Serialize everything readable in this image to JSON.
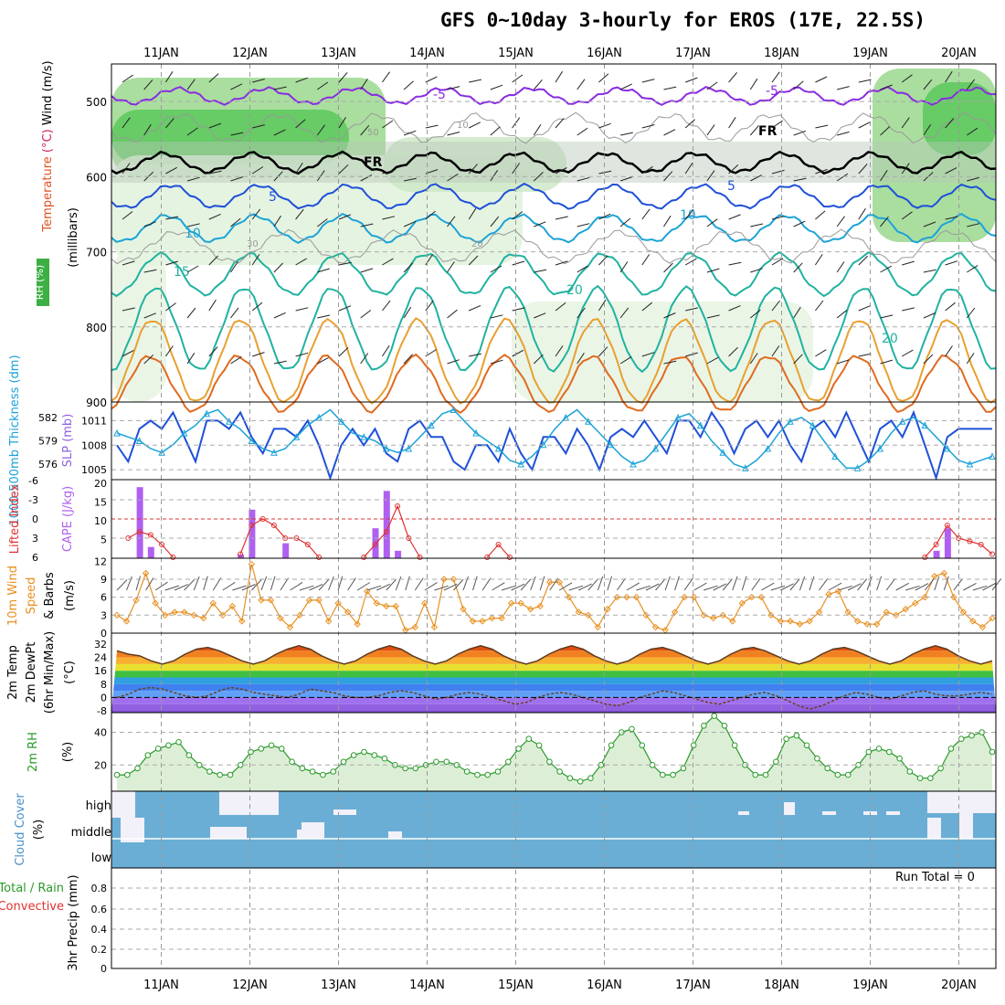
{
  "title": "GFS 0~10day 3-hourly for EROS (17E, 22.5S)",
  "days": [
    "11JAN",
    "12JAN",
    "13JAN",
    "14JAN",
    "15JAN",
    "16JAN",
    "17JAN",
    "18JAN",
    "19JAN",
    "20JAN"
  ],
  "colors": {
    "rh": "#3cb043",
    "purple": "#8a2be2",
    "blue": "#1e50d8",
    "cyan": "#1ca3d8",
    "teal": "#20b2a0",
    "orange": "#e8a030",
    "dkorange": "#e06a20",
    "magenta": "#d0107a",
    "wind": "#e89020",
    "cloud": "#6aaed6",
    "green": "#2a9a2a"
  },
  "chart_data": [
    {
      "type": "heatmap",
      "panel": "upper-air",
      "ylabel": "(millibars)",
      "ylabel_parts": [
        "Temperature",
        "(°C)",
        "Wind",
        "(m/s)"
      ],
      "rh_label": "RH (%)",
      "yticks": [
        500,
        600,
        700,
        800,
        900
      ],
      "ylim": [
        450,
        900
      ],
      "contour_labels": [
        "-5",
        "FR",
        "5",
        "10",
        "15",
        "20",
        "30",
        "10",
        "50",
        "20",
        "-5",
        "FR",
        "5",
        "10",
        "20"
      ]
    },
    {
      "type": "line",
      "panel": "thickness-slp",
      "ylabel_left": "1000-500mb Thickness (dm)",
      "ylabel_right": "SLP (mb)",
      "yticks_left": [
        576,
        579,
        582
      ],
      "yticks_right": [
        1005,
        1008,
        1011
      ],
      "slp": [
        1008,
        1006,
        1010,
        1011,
        1010,
        1012,
        1009,
        1006,
        1011,
        1011,
        1010,
        1012,
        1009,
        1007,
        1010,
        1010,
        1009,
        1011,
        1008,
        1004,
        1008,
        1010,
        1008,
        1010,
        1007,
        1006,
        1010,
        1011,
        1009,
        1009,
        1006,
        1005,
        1008,
        1008,
        1006,
        1010,
        1007,
        1005,
        1009,
        1009,
        1007,
        1010,
        1008,
        1005,
        1009,
        1010,
        1009,
        1011,
        1009,
        1007,
        1011,
        1011,
        1009,
        1012,
        1010,
        1007,
        1010,
        1011,
        1009,
        1011,
        1008,
        1006,
        1010,
        1011,
        1009,
        1012,
        1009,
        1006,
        1010,
        1011,
        1009,
        1012,
        1008,
        1004,
        1009,
        1010,
        1010,
        1010,
        1010
      ],
      "thickness": [
        580,
        579.5,
        579,
        578,
        577.5,
        578.5,
        580,
        581,
        582.5,
        583,
        581.5,
        580.5,
        579,
        578,
        577.5,
        578,
        579.5,
        581,
        582,
        583,
        581.5,
        580,
        579.5,
        579,
        578,
        577.5,
        578,
        579.5,
        581,
        582.5,
        583,
        581.5,
        580,
        579,
        578,
        576.5,
        576,
        577,
        578.5,
        580.5,
        582,
        583,
        581.5,
        580,
        578.5,
        577,
        576,
        576.5,
        578,
        580,
        582,
        582.5,
        581,
        579,
        577.5,
        576,
        575.5,
        576.5,
        578,
        580,
        581.5,
        582,
        581,
        579,
        577,
        575.5,
        575.5,
        576.5,
        578,
        580,
        581.5,
        582,
        581,
        579.5,
        578,
        576.5,
        576,
        576.5,
        577
      ]
    },
    {
      "type": "bar",
      "panel": "cape-li",
      "ylabel_left": "Lifted Index",
      "ylabel_right": "CAPE (J/kg)",
      "yticks_left": [
        "-6",
        "-3",
        "0",
        "3",
        "6"
      ],
      "yticks_right": [
        5,
        10,
        15,
        20
      ],
      "cape": [
        0,
        0,
        19,
        3,
        0,
        0,
        0,
        0,
        0,
        0,
        0,
        1,
        13,
        0,
        0,
        4,
        0,
        0,
        0,
        0,
        0,
        0,
        0,
        8,
        18,
        2,
        0,
        0,
        0,
        0,
        0,
        0,
        0,
        0,
        0,
        0,
        0,
        0,
        0,
        0,
        0,
        0,
        0,
        0,
        0,
        0,
        0,
        0,
        0,
        0,
        0,
        0,
        0,
        0,
        0,
        0,
        0,
        0,
        0,
        0,
        0,
        0,
        0,
        0,
        0,
        0,
        0,
        0,
        0,
        0,
        0,
        0,
        0,
        2,
        8,
        0,
        0,
        0,
        0
      ],
      "lifted_index": [
        null,
        3,
        2,
        2.5,
        4,
        6,
        null,
        null,
        null,
        null,
        null,
        5.5,
        1,
        0,
        1,
        3,
        3,
        4,
        6,
        null,
        null,
        null,
        6,
        4,
        2,
        -2,
        3,
        6,
        null,
        null,
        null,
        null,
        null,
        6,
        4,
        6,
        null,
        null,
        null,
        null,
        null,
        null,
        null,
        null,
        null,
        null,
        null,
        null,
        null,
        null,
        null,
        null,
        null,
        null,
        null,
        null,
        null,
        null,
        null,
        null,
        null,
        null,
        null,
        null,
        null,
        null,
        null,
        null,
        null,
        null,
        null,
        null,
        6,
        4,
        1,
        3,
        3.5,
        4,
        5.5
      ]
    },
    {
      "type": "line",
      "panel": "wind10m",
      "ylabel": "10m Wind Speed & Barbs (m/s)",
      "ylabel_parts": [
        "10m Wind",
        "Speed",
        "& Barbs",
        "(m/s)"
      ],
      "yticks": [
        0,
        3,
        6,
        9,
        12
      ],
      "values": [
        3,
        2,
        5.5,
        10,
        5,
        3,
        3.5,
        3.5,
        3,
        2.5,
        5,
        3,
        4.5,
        2,
        11.5,
        5.5,
        5.5,
        2.5,
        1,
        3,
        5.5,
        5.5,
        2,
        5,
        3.5,
        1.5,
        7,
        5,
        4.5,
        4.5,
        0.5,
        1,
        5,
        1,
        9,
        9,
        4,
        2,
        2,
        2.5,
        2.5,
        5,
        5,
        4,
        4.5,
        8.5,
        8.5,
        6,
        3.5,
        3,
        1,
        4,
        6,
        6,
        6,
        3,
        1,
        0.5,
        3.5,
        6,
        6,
        3,
        2.5,
        3,
        2,
        5,
        6,
        6,
        3,
        2,
        2,
        1.5,
        2,
        3.5,
        6.5,
        7,
        3.5,
        2,
        1.5,
        1.5,
        3.5,
        3,
        4,
        5,
        6,
        9.5,
        10,
        6,
        3.5,
        2,
        1,
        2.5
      ]
    },
    {
      "type": "area",
      "panel": "temp2m",
      "ylabel": "2m Temp / 2m DewPt (6hr Min/Max) (°C)",
      "ylabel_parts": [
        "2m Temp",
        "2m DewPt",
        "(6hr Min/Max)",
        "(°C)"
      ],
      "yticks": [
        "32",
        "24",
        "16",
        "8",
        "0",
        "-8"
      ],
      "temp": [
        28,
        26,
        25,
        22,
        20,
        22,
        26,
        29,
        30,
        28,
        25,
        22,
        20,
        22,
        26,
        29,
        31,
        29,
        25,
        22,
        20,
        22,
        26,
        29,
        31,
        29,
        25,
        22,
        20,
        22,
        26,
        29,
        31,
        29,
        25,
        22,
        20,
        22,
        26,
        29,
        31,
        29,
        25,
        22,
        20,
        22,
        26,
        29,
        30,
        28,
        25,
        22,
        20,
        22,
        26,
        29,
        30,
        28,
        25,
        22,
        20,
        22,
        26,
        29,
        30,
        28,
        25,
        22,
        20,
        22,
        26,
        29,
        31,
        29,
        25,
        22,
        20,
        22
      ],
      "dewpt": [
        0,
        2,
        5,
        6,
        5,
        3,
        1,
        0,
        1,
        4,
        6,
        5,
        3,
        2,
        1,
        0,
        2,
        5,
        4,
        3,
        1,
        0,
        0,
        1,
        3,
        4,
        3,
        1,
        -1,
        0,
        2,
        3,
        2,
        0,
        -2,
        -4,
        -3,
        0,
        2,
        3,
        2,
        0,
        -2,
        -4,
        -5,
        -3,
        0,
        2,
        4,
        3,
        1,
        -1,
        -3,
        -4,
        -2,
        0,
        2,
        3,
        1,
        -2,
        -5,
        -7,
        -5,
        -2,
        1,
        3,
        2,
        0,
        -1,
        1,
        3,
        4,
        2,
        1,
        1,
        2,
        3,
        2
      ]
    },
    {
      "type": "area",
      "panel": "rh2m",
      "ylabel": "2m RH (%)",
      "ylabel_parts": [
        "2m RH",
        "(%)"
      ],
      "yticks": [
        20,
        40
      ],
      "values": [
        14,
        14,
        18,
        26,
        30,
        32,
        34,
        26,
        20,
        16,
        14,
        14,
        20,
        28,
        30,
        32,
        30,
        22,
        18,
        16,
        14,
        16,
        22,
        26,
        28,
        26,
        24,
        20,
        18,
        18,
        20,
        22,
        22,
        20,
        16,
        14,
        14,
        16,
        22,
        30,
        36,
        32,
        22,
        16,
        12,
        10,
        12,
        20,
        32,
        40,
        42,
        32,
        20,
        14,
        14,
        18,
        32,
        44,
        50,
        44,
        32,
        20,
        14,
        14,
        22,
        36,
        38,
        32,
        24,
        18,
        14,
        14,
        20,
        28,
        30,
        28,
        24,
        16,
        12,
        12,
        18,
        30,
        36,
        38,
        40,
        28
      ]
    },
    {
      "type": "heatmap",
      "panel": "cloud",
      "ylabel": "Cloud Cover (%)",
      "ylabel_parts": [
        "Cloud Cover",
        "(%)"
      ],
      "yticks": [
        "high",
        "middle",
        "low"
      ]
    },
    {
      "type": "bar",
      "panel": "precip",
      "ylabel": "3hr Precip (mm)",
      "ylabel_parts": [
        "Total / Rain",
        "Convective",
        "3hr Precip",
        "(mm)"
      ],
      "yticks": [
        "0",
        "0.2",
        "0.4",
        "0.6",
        "0.8"
      ],
      "values": [],
      "annotation": "Run Total = 0"
    }
  ]
}
